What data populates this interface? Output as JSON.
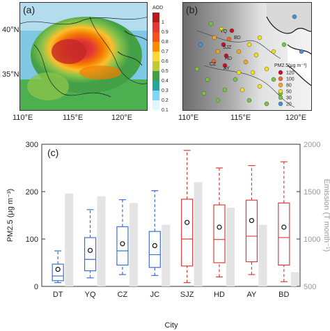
{
  "map_a": {
    "panel_label": "(a)",
    "colorbar_title": "AOD",
    "colorbar_ticks": [
      "1",
      "0.9",
      "0.8",
      "0.7",
      "0.6",
      "0.5",
      "0.4",
      "0.3",
      "0.2",
      "0.1"
    ],
    "lat_labels": [
      "40°N",
      "35°N"
    ],
    "lon_labels": [
      "110°E",
      "115°E",
      "120°E"
    ]
  },
  "map_b": {
    "panel_label": "(b)",
    "lon_labels": [
      "110°E",
      "115°E",
      "120°E"
    ],
    "legend_title": "PM2.5(μg m⁻³)",
    "legend_items": [
      {
        "label": "120",
        "color": "#c8102e"
      },
      {
        "label": "100",
        "color": "#ef6c2a"
      },
      {
        "label": "80",
        "color": "#f5a623"
      },
      {
        "label": "50",
        "color": "#f2e01e"
      },
      {
        "label": "30",
        "color": "#7cc242"
      },
      {
        "label": "20",
        "color": "#4a90d9"
      }
    ],
    "city_labels": [
      "YQ",
      "BD",
      "SJZ",
      "HD",
      "CZ",
      "AY"
    ]
  },
  "chart_data": {
    "type": "box",
    "panel_label": "(c)",
    "xlabel": "City",
    "ylabel": "PM2.5 (μg m⁻³)",
    "y2label": "Emission (T month⁻¹)",
    "ylim": [
      0,
      300
    ],
    "yticks": [
      0,
      100,
      200,
      300
    ],
    "y2lim": [
      500,
      2000
    ],
    "y2ticks": [
      500,
      1000,
      1500,
      2000
    ],
    "categories": [
      "DT",
      "YQ",
      "CZ",
      "JC",
      "SJZ",
      "HD",
      "AY",
      "BD"
    ],
    "groups": [
      "blue",
      "blue",
      "blue",
      "blue",
      "red",
      "red",
      "red",
      "red"
    ],
    "colors": {
      "blue": "#3a6fd8",
      "red": "#e03a3a",
      "bar": "#e4e4e4"
    },
    "boxes": [
      {
        "min": 8,
        "q1": 12,
        "median": 22,
        "q3": 47,
        "max": 75,
        "mean": 36
      },
      {
        "min": 18,
        "q1": 33,
        "median": 57,
        "q3": 103,
        "max": 162,
        "mean": 76
      },
      {
        "min": 25,
        "q1": 45,
        "median": 75,
        "q3": 126,
        "max": 183,
        "mean": 90
      },
      {
        "min": 23,
        "q1": 40,
        "median": 67,
        "q3": 116,
        "max": 202,
        "mean": 86
      },
      {
        "min": 8,
        "q1": 43,
        "median": 100,
        "q3": 184,
        "max": 287,
        "mean": 135
      },
      {
        "min": 20,
        "q1": 50,
        "median": 99,
        "q3": 172,
        "max": 250,
        "mean": 125
      },
      {
        "min": 25,
        "q1": 52,
        "median": 106,
        "q3": 182,
        "max": 255,
        "mean": 139
      },
      {
        "min": 10,
        "q1": 45,
        "median": 103,
        "q3": 176,
        "max": 263,
        "mean": 125
      }
    ],
    "emission": [
      1480,
      1450,
      1380,
      1150,
      1600,
      1330,
      1150,
      650
    ]
  }
}
